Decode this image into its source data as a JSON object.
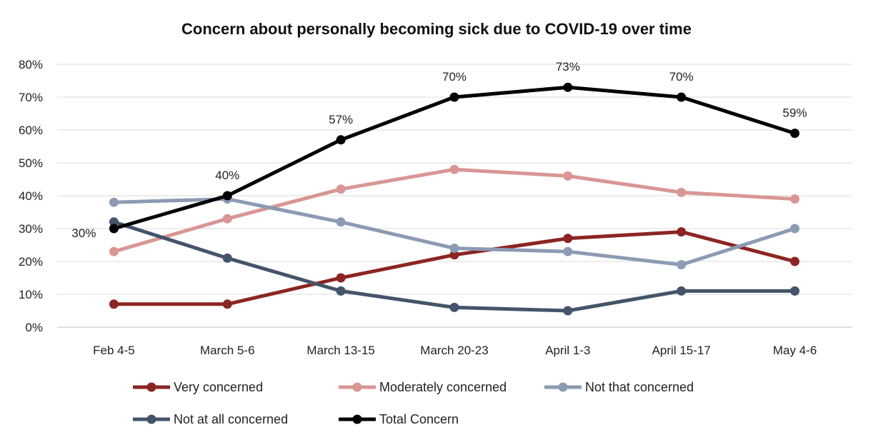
{
  "chart_data": {
    "type": "line",
    "title": "Concern about personally becoming sick due to COVID-19 over time",
    "categories": [
      "Feb 4-5",
      "March 5-6",
      "March 13-15",
      "March 20-23",
      "April 1-3",
      "April 15-17",
      "May 4-6"
    ],
    "ylim": [
      0,
      80
    ],
    "yticks": [
      0,
      10,
      20,
      30,
      40,
      50,
      60,
      70,
      80
    ],
    "ytick_labels": [
      "0%",
      "10%",
      "20%",
      "30%",
      "40%",
      "50%",
      "60%",
      "70%",
      "80%"
    ],
    "grid": true,
    "legend_position": "bottom",
    "series": [
      {
        "name": "Very concerned",
        "color": "#8b2523",
        "values": [
          7,
          7,
          15,
          22,
          27,
          29,
          20
        ]
      },
      {
        "name": "Moderately concerned",
        "color": "#d99694",
        "values": [
          23,
          33,
          42,
          48,
          46,
          41,
          39
        ]
      },
      {
        "name": "Not that concerned",
        "color": "#8c9ab3",
        "values": [
          38,
          39,
          32,
          24,
          23,
          19,
          30
        ]
      },
      {
        "name": "Not at all concerned",
        "color": "#44546a",
        "values": [
          32,
          21,
          11,
          6,
          5,
          11,
          11
        ]
      },
      {
        "name": "Total Concern",
        "color": "#000000",
        "values": [
          30,
          40,
          57,
          70,
          73,
          70,
          59
        ]
      }
    ],
    "data_labels": {
      "series": "Total Concern",
      "labels": [
        "30%",
        "40%",
        "57%",
        "70%",
        "73%",
        "70%",
        "59%"
      ]
    }
  }
}
